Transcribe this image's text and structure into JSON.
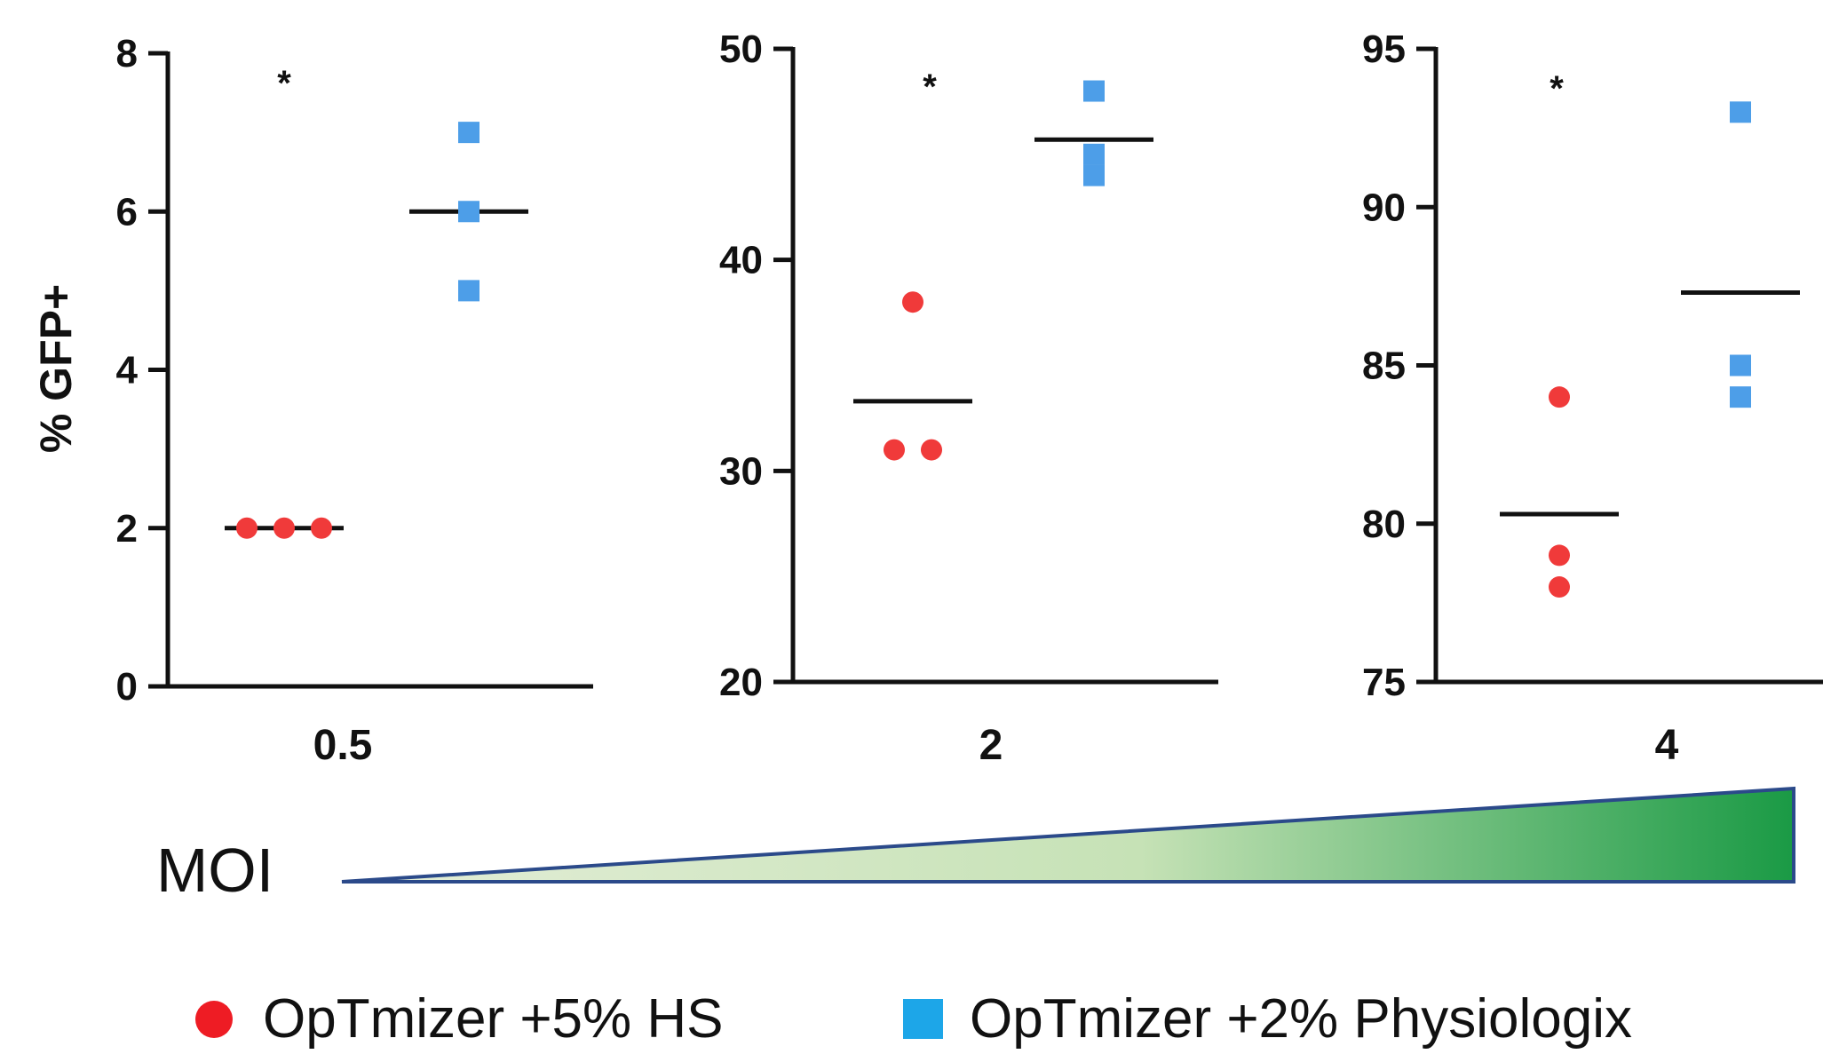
{
  "chart_data": [
    {
      "type": "scatter",
      "group_label": "0.5",
      "ylabel": "% GFP+",
      "ylim": [
        0,
        8
      ],
      "yticks": [
        "0",
        "2",
        "4",
        "6",
        "8"
      ],
      "significance": "*",
      "series": [
        {
          "name": "OpTmizer +5% HS",
          "values": [
            2,
            2,
            2
          ],
          "mean": 2
        },
        {
          "name": "OpTmizer +2% Physiologix",
          "values": [
            7,
            6,
            5
          ],
          "mean": 6
        }
      ]
    },
    {
      "type": "scatter",
      "group_label": "2",
      "ylabel": "",
      "ylim": [
        20,
        50
      ],
      "yticks": [
        "20",
        "30",
        "40",
        "50"
      ],
      "significance": "*",
      "series": [
        {
          "name": "OpTmizer +5% HS",
          "values": [
            38,
            31,
            31
          ],
          "mean": 33.3
        },
        {
          "name": "OpTmizer +2% Physiologix",
          "values": [
            48,
            45,
            44
          ],
          "mean": 45.7
        }
      ]
    },
    {
      "type": "scatter",
      "group_label": "4",
      "ylabel": "",
      "ylim": [
        75,
        95
      ],
      "yticks": [
        "75",
        "80",
        "85",
        "90",
        "95"
      ],
      "significance": "*",
      "series": [
        {
          "name": "OpTmizer +5% HS",
          "values": [
            84,
            79,
            78
          ],
          "mean": 80.3
        },
        {
          "name": "OpTmizer +2% Physiologix",
          "values": [
            93,
            85,
            84
          ],
          "mean": 87.3
        }
      ]
    }
  ],
  "moi": {
    "label": "MOI"
  },
  "legend": {
    "position": "bottom",
    "items": [
      {
        "label": "OpTmizer +5% HS",
        "color": "#ee1c24",
        "marker": "circle"
      },
      {
        "label": "OpTmizer +2% Physiologix",
        "color": "#1da6e8",
        "marker": "square"
      }
    ]
  },
  "colors": {
    "hs_points": "#f03a3a",
    "physio_points": "#4d9ee8",
    "mean_line": "#111111",
    "wedge_dark": "#1a9a45",
    "wedge_light": "#e4eed8",
    "wedge_stroke": "#2b4a8a"
  }
}
